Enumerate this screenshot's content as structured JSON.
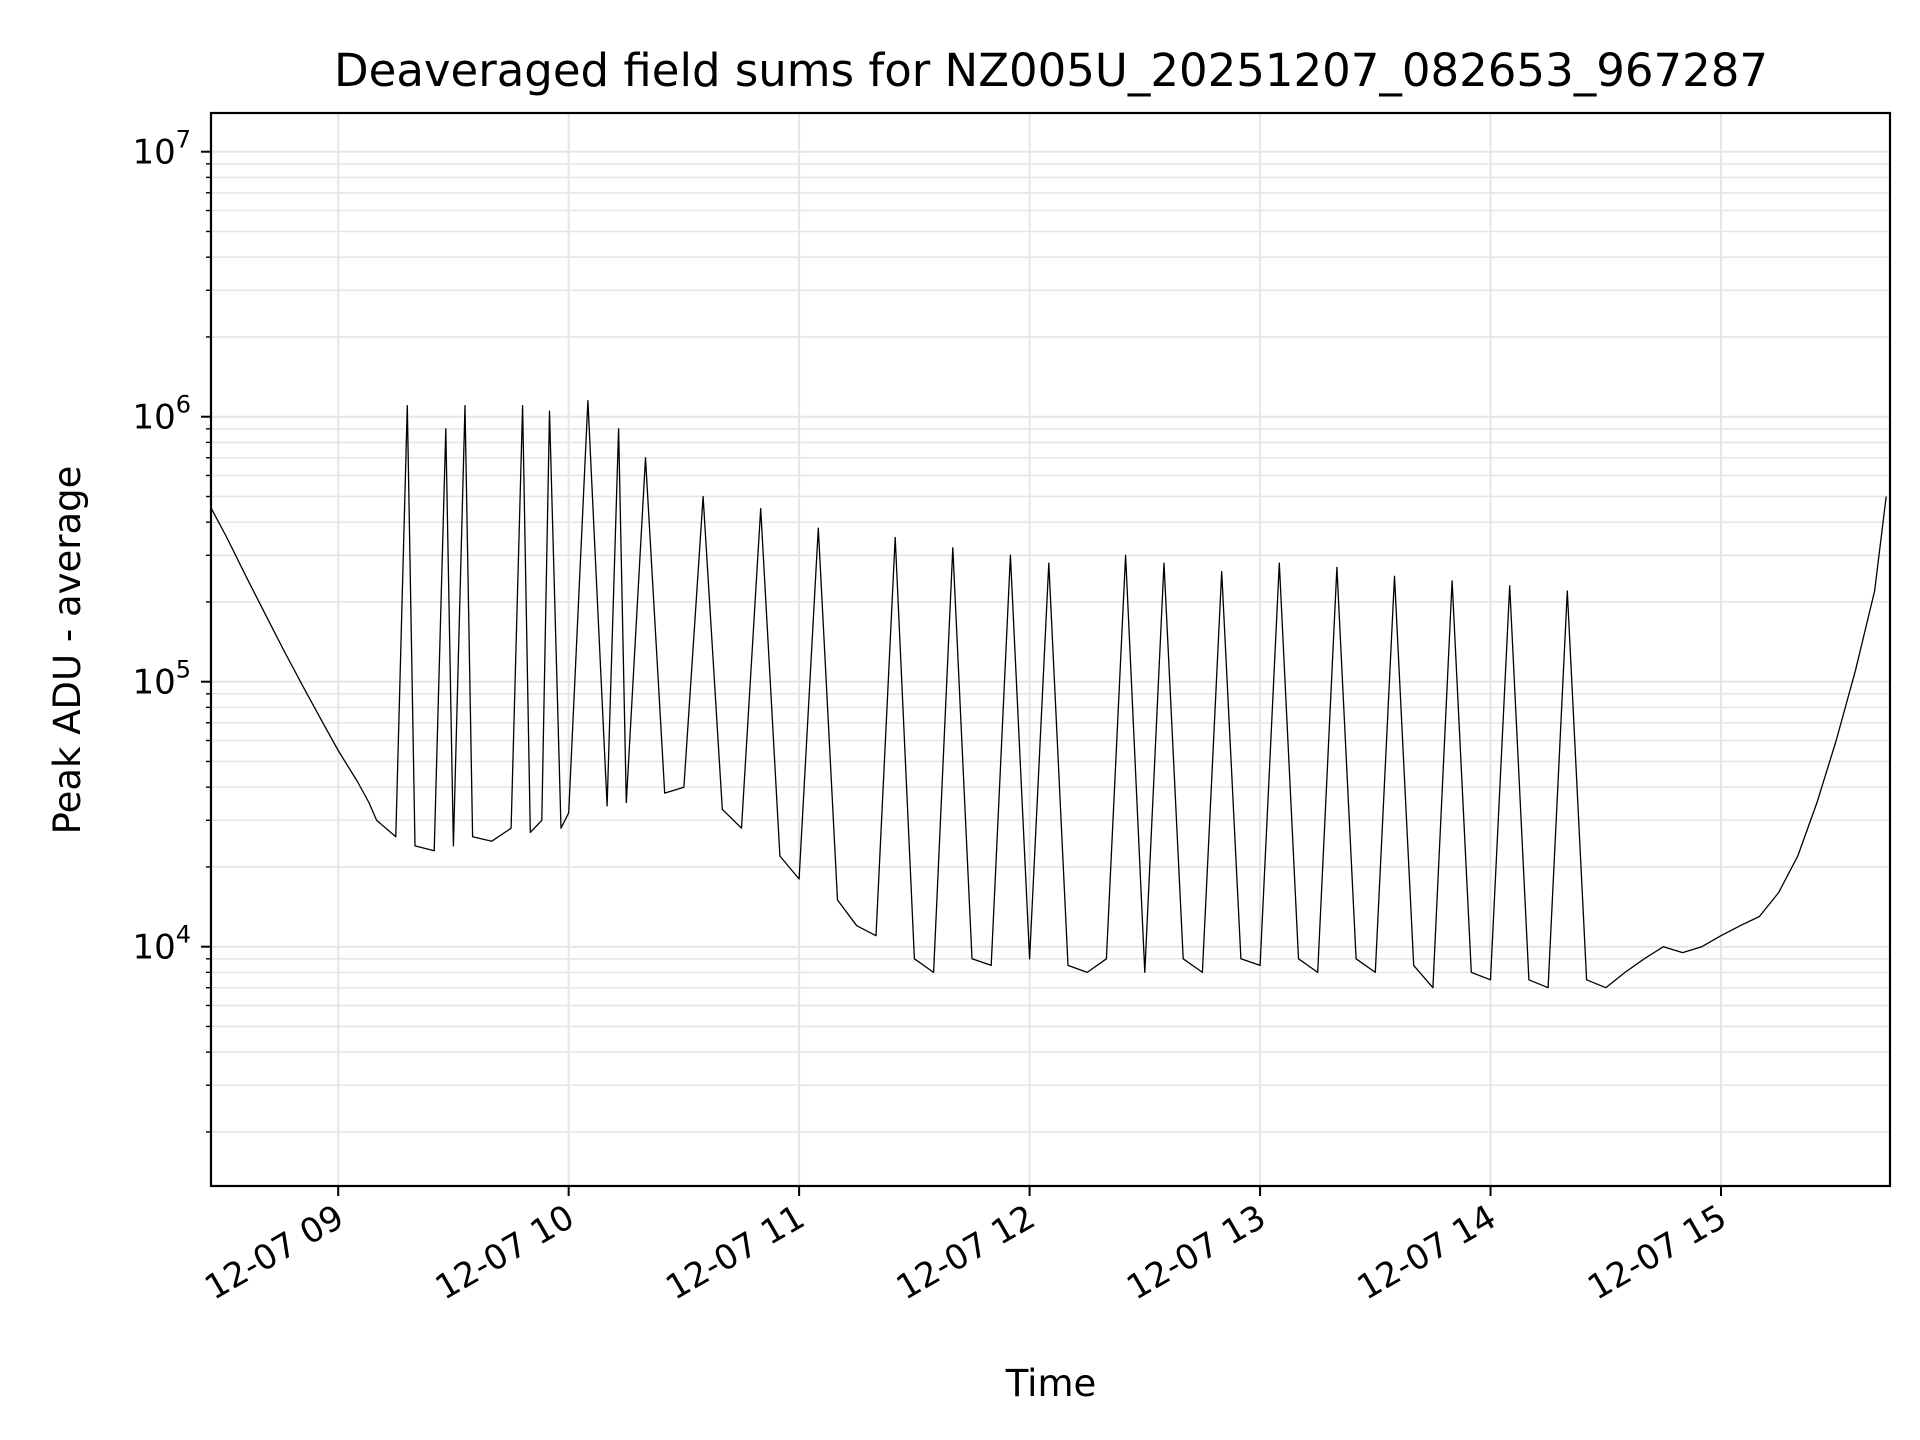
{
  "chart_data": {
    "type": "line",
    "title": "Deaveraged field sums for NZ005U_20251207_082653_967287",
    "xlabel": "Time",
    "ylabel": "Peak ADU - average",
    "yscale": "log",
    "grid": true,
    "legend": "none",
    "ylim": [
      1250,
      14000000
    ],
    "xlim": [
      "2025-12-07 08:26:53",
      "2025-12-07 15:44:00"
    ],
    "x_ticks": [
      "12-07 09",
      "12-07 10",
      "12-07 11",
      "12-07 12",
      "12-07 13",
      "12-07 14",
      "12-07 15"
    ],
    "y_ticks": [
      {
        "base": "10",
        "exp": "4",
        "value": 10000
      },
      {
        "base": "10",
        "exp": "5",
        "value": 100000
      },
      {
        "base": "10",
        "exp": "6",
        "value": 1000000
      },
      {
        "base": "10",
        "exp": "7",
        "value": 10000000
      }
    ],
    "line_color": "#000000",
    "grid_color": "#e6e6e6",
    "series": [
      {
        "x": [
          "2025-12-07 08:27",
          "2025-12-07 08:31",
          "2025-12-07 08:36",
          "2025-12-07 08:41",
          "2025-12-07 08:46",
          "2025-12-07 08:51",
          "2025-12-07 08:56",
          "2025-12-07 09:00",
          "2025-12-07 09:05",
          "2025-12-07 09:08",
          "2025-12-07 09:10",
          "2025-12-07 09:15",
          "2025-12-07 09:18",
          "2025-12-07 09:20",
          "2025-12-07 09:25",
          "2025-12-07 09:28",
          "2025-12-07 09:30",
          "2025-12-07 09:33",
          "2025-12-07 09:35",
          "2025-12-07 09:40",
          "2025-12-07 09:45",
          "2025-12-07 09:48",
          "2025-12-07 09:50",
          "2025-12-07 09:53",
          "2025-12-07 09:55",
          "2025-12-07 09:58",
          "2025-12-07 10:00",
          "2025-12-07 10:05",
          "2025-12-07 10:10",
          "2025-12-07 10:13",
          "2025-12-07 10:15",
          "2025-12-07 10:20",
          "2025-12-07 10:25",
          "2025-12-07 10:30",
          "2025-12-07 10:35",
          "2025-12-07 10:40",
          "2025-12-07 10:45",
          "2025-12-07 10:50",
          "2025-12-07 10:55",
          "2025-12-07 11:00",
          "2025-12-07 11:05",
          "2025-12-07 11:10",
          "2025-12-07 11:15",
          "2025-12-07 11:20",
          "2025-12-07 11:25",
          "2025-12-07 11:30",
          "2025-12-07 11:35",
          "2025-12-07 11:40",
          "2025-12-07 11:45",
          "2025-12-07 11:50",
          "2025-12-07 11:55",
          "2025-12-07 12:00",
          "2025-12-07 12:05",
          "2025-12-07 12:10",
          "2025-12-07 12:15",
          "2025-12-07 12:20",
          "2025-12-07 12:25",
          "2025-12-07 12:30",
          "2025-12-07 12:35",
          "2025-12-07 12:40",
          "2025-12-07 12:45",
          "2025-12-07 12:50",
          "2025-12-07 12:55",
          "2025-12-07 13:00",
          "2025-12-07 13:05",
          "2025-12-07 13:10",
          "2025-12-07 13:15",
          "2025-12-07 13:20",
          "2025-12-07 13:25",
          "2025-12-07 13:30",
          "2025-12-07 13:35",
          "2025-12-07 13:40",
          "2025-12-07 13:45",
          "2025-12-07 13:50",
          "2025-12-07 13:55",
          "2025-12-07 14:00",
          "2025-12-07 14:05",
          "2025-12-07 14:10",
          "2025-12-07 14:15",
          "2025-12-07 14:20",
          "2025-12-07 14:25",
          "2025-12-07 14:30",
          "2025-12-07 14:35",
          "2025-12-07 14:40",
          "2025-12-07 14:45",
          "2025-12-07 14:50",
          "2025-12-07 14:55",
          "2025-12-07 15:00",
          "2025-12-07 15:05",
          "2025-12-07 15:10",
          "2025-12-07 15:15",
          "2025-12-07 15:20",
          "2025-12-07 15:25",
          "2025-12-07 15:30",
          "2025-12-07 15:35",
          "2025-12-07 15:40",
          "2025-12-07 15:43"
        ],
        "y": [
          450000,
          350000,
          250000,
          180000,
          130000,
          95000,
          70000,
          55000,
          42000,
          35000,
          30000,
          26000,
          1100000,
          24000,
          23000,
          900000,
          24000,
          1100000,
          26000,
          25000,
          28000,
          1100000,
          27000,
          30000,
          1050000,
          28000,
          32000,
          1150000,
          34000,
          900000,
          35000,
          700000,
          38000,
          40000,
          500000,
          33000,
          28000,
          450000,
          22000,
          18000,
          380000,
          15000,
          12000,
          11000,
          350000,
          9000,
          8000,
          320000,
          9000,
          8500,
          300000,
          9000,
          280000,
          8500,
          8000,
          9000,
          300000,
          8000,
          280000,
          9000,
          8000,
          260000,
          9000,
          8500,
          280000,
          9000,
          8000,
          270000,
          9000,
          8000,
          250000,
          8500,
          7000,
          240000,
          8000,
          7500,
          230000,
          7500,
          7000,
          220000,
          7500,
          7000,
          8000,
          9000,
          10000,
          9500,
          10000,
          11000,
          12000,
          13000,
          16000,
          22000,
          35000,
          60000,
          110000,
          220000,
          500000
        ]
      }
    ]
  }
}
